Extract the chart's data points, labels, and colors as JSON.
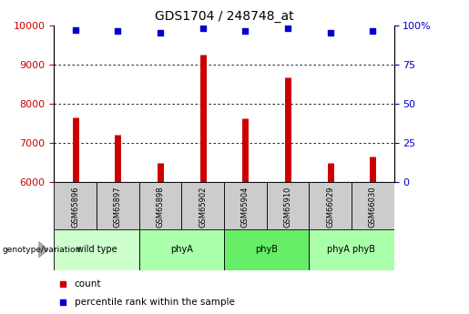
{
  "title": "GDS1704 / 248748_at",
  "samples": [
    "GSM65896",
    "GSM65897",
    "GSM65898",
    "GSM65902",
    "GSM65904",
    "GSM65910",
    "GSM66029",
    "GSM66030"
  ],
  "counts": [
    7650,
    7200,
    6480,
    9250,
    7620,
    8680,
    6480,
    6650
  ],
  "percentile_ranks": [
    97,
    96,
    95,
    98,
    96,
    98,
    95,
    96
  ],
  "groups": [
    {
      "label": "wild type",
      "start": 0,
      "end": 2,
      "color": "#ccffcc"
    },
    {
      "label": "phyA",
      "start": 2,
      "end": 4,
      "color": "#aaffaa"
    },
    {
      "label": "phyB",
      "start": 4,
      "end": 6,
      "color": "#66ee66"
    },
    {
      "label": "phyA phyB",
      "start": 6,
      "end": 8,
      "color": "#aaffaa"
    }
  ],
  "ylim_left": [
    6000,
    10000
  ],
  "ylim_right": [
    0,
    100
  ],
  "yticks_left": [
    6000,
    7000,
    8000,
    9000,
    10000
  ],
  "yticks_right": [
    0,
    25,
    50,
    75,
    100
  ],
  "bar_color": "#cc0000",
  "dot_color": "#0000cc",
  "grid_color": "#000000",
  "tick_label_color_left": "#cc0000",
  "tick_label_color_right": "#0000cc",
  "sample_box_color": "#cccccc",
  "legend_items": [
    {
      "label": "count",
      "color": "#cc0000"
    },
    {
      "label": "percentile rank within the sample",
      "color": "#0000cc"
    }
  ],
  "genotype_label": "genotype/variation"
}
